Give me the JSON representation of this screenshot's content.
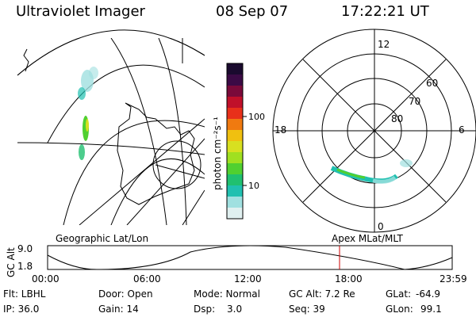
{
  "header": {
    "title": "Ultraviolet Imager",
    "date": "08 Sep 07",
    "time": "17:22:21 UT"
  },
  "colorbar": {
    "label": "photon cm⁻²s⁻¹",
    "ticks": [
      "100",
      "10"
    ],
    "colors": [
      "#1a0a2e",
      "#3b0a45",
      "#7a0a3a",
      "#c0102a",
      "#e8301a",
      "#f07a10",
      "#f0c010",
      "#d8e020",
      "#a0e020",
      "#50d030",
      "#20c070",
      "#20c0b0",
      "#a0e0e0",
      "#e0f0f0"
    ]
  },
  "geo_panel": {
    "label": "Geographic Lat/Lon"
  },
  "polar_panel": {
    "label": "Apex MLat/MLT",
    "hour_labels": {
      "top": "12",
      "bottom": "0",
      "left": "18",
      "right": "6"
    },
    "lat_labels": [
      "60",
      "70",
      "80"
    ]
  },
  "timeline": {
    "axis_label": "GC Alt",
    "y_ticks": [
      "9.0",
      "1.8"
    ],
    "x_ticks": [
      "00:00",
      "06:00",
      "12:00",
      "18:00",
      "23:59"
    ],
    "marker_color": "#cc0000"
  },
  "status": {
    "filter": "Flt: LBHL",
    "ip": "IP: 36.0",
    "door": "Door: Open",
    "gain": "Gain: 14",
    "mode": "Mode: Normal",
    "dsp_label": "Dsp:",
    "dsp_value": "3.0",
    "gc_alt": "GC Alt: 7.2 Re",
    "seq": "Seq: 39",
    "glat_label": "GLat:",
    "glat_value": "-64.9",
    "glon_label": "GLon:",
    "glon_value": "99.1"
  }
}
